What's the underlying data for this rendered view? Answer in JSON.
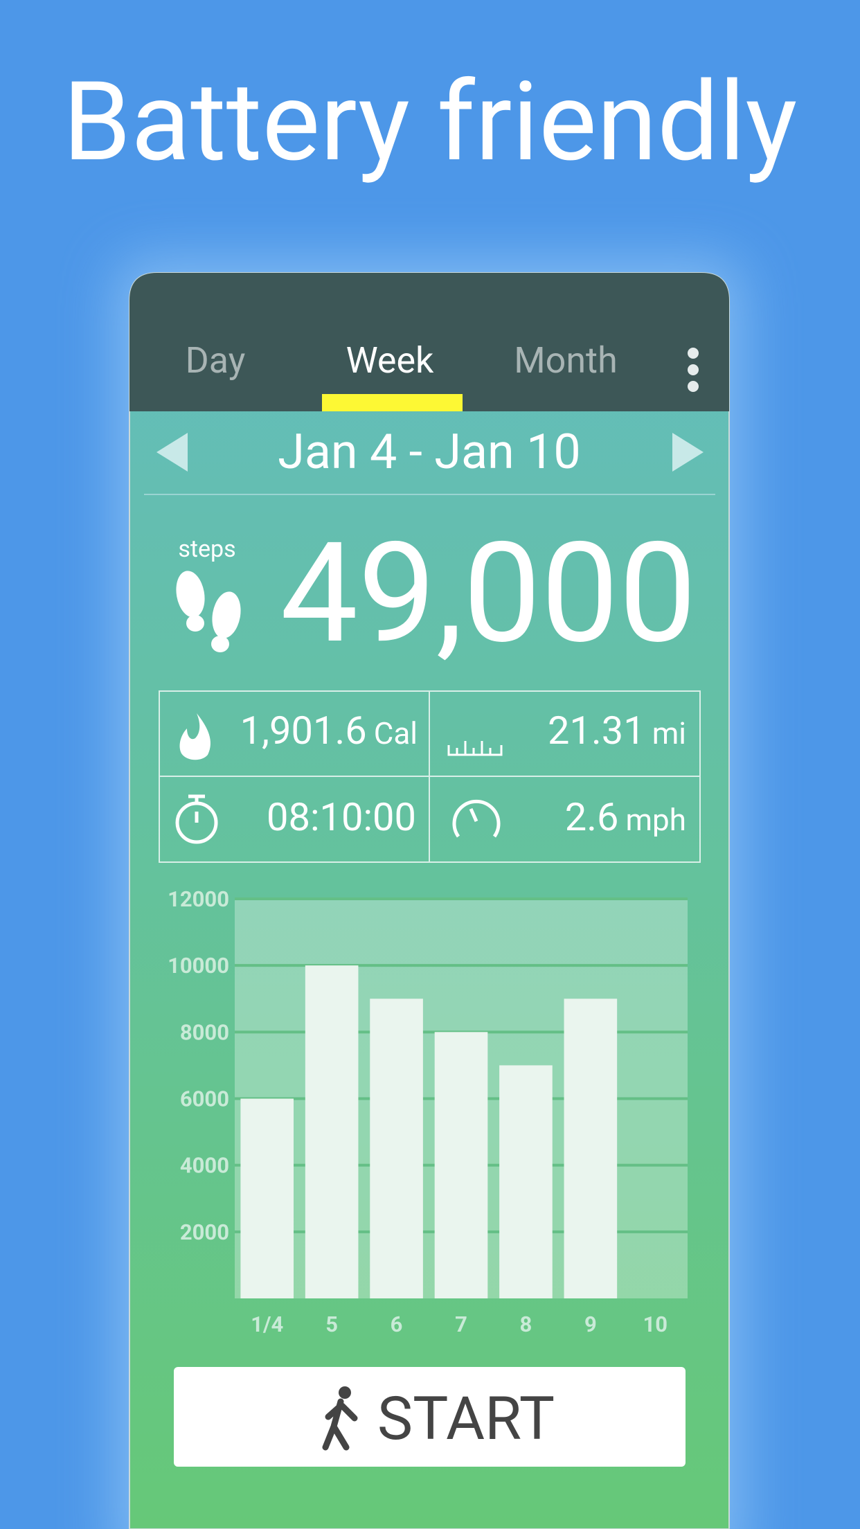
{
  "header": {
    "title": "Battery friendly"
  },
  "tabs": [
    "Day",
    "Week",
    "Month"
  ],
  "date_range": "Jan 4 - Jan 10",
  "steps": {
    "label": "steps",
    "value": "49,000"
  },
  "stats": [
    {
      "value": "1,901.6",
      "unit": "Cal"
    },
    {
      "value": "21.31",
      "unit": "mi"
    },
    {
      "value": "08:10:00"
    },
    {
      "value": "2.6",
      "unit": "mph"
    }
  ],
  "chart_data": {
    "type": "bar",
    "categories": [
      "1/4",
      "5",
      "6",
      "7",
      "8",
      "9",
      "10"
    ],
    "values": [
      6000,
      10000,
      9000,
      8000,
      7000,
      9000,
      0
    ],
    "color": "#eaf5ee",
    "ylim": [
      0,
      12000
    ],
    "yticks": [
      2000,
      4000,
      6000,
      8000,
      10000,
      12000
    ],
    "grid": true
  },
  "start_button": "START"
}
